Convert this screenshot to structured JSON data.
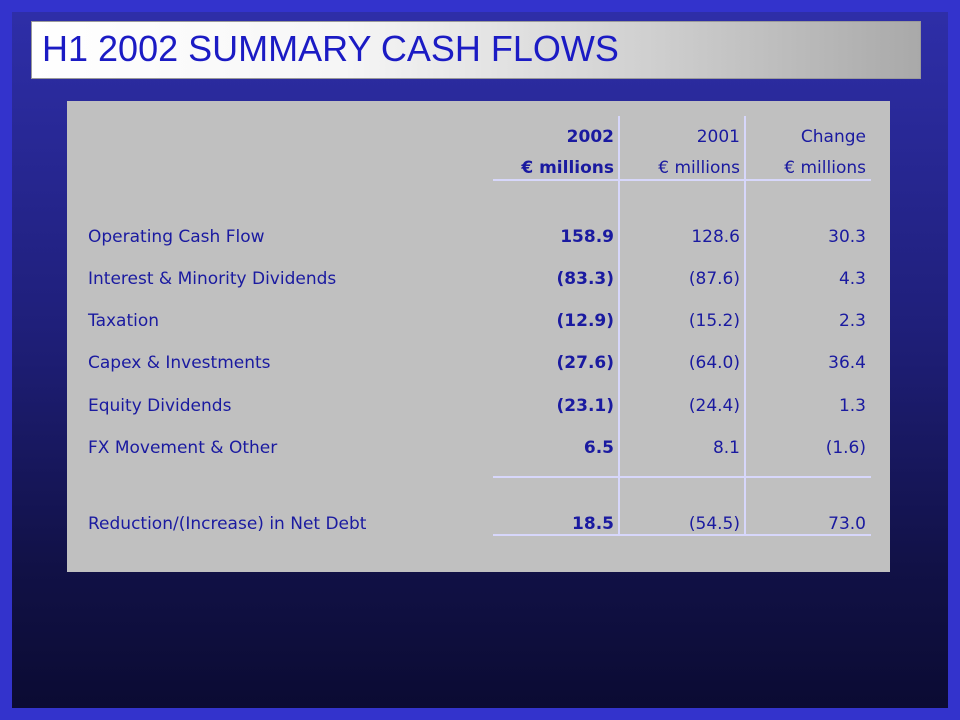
{
  "title": "H1 2002 SUMMARY CASH FLOWS",
  "columns": [
    {
      "year": "2002",
      "unit": "€ millions"
    },
    {
      "year": "2001",
      "unit": "€ millions"
    },
    {
      "year": "Change",
      "unit": "€ millions"
    }
  ],
  "rows": [
    {
      "label": "Operating Cash Flow",
      "v2002": "158.9",
      "v2001": "128.6",
      "change": "30.3"
    },
    {
      "label": "Interest & Minority Dividends",
      "v2002": "(83.3)",
      "v2001": "(87.6)",
      "change": "4.3"
    },
    {
      "label": "Taxation",
      "v2002": "(12.9)",
      "v2001": "(15.2)",
      "change": "2.3"
    },
    {
      "label": "Capex & Investments",
      "v2002": "(27.6)",
      "v2001": "(64.0)",
      "change": "36.4"
    },
    {
      "label": "Equity Dividends",
      "v2002": "(23.1)",
      "v2001": "(24.4)",
      "change": "1.3"
    },
    {
      "label": "FX Movement & Other",
      "v2002": "6.5",
      "v2001": "8.1",
      "change": "(1.6)"
    }
  ],
  "total": {
    "label": "Reduction/(Increase) in Net Debt",
    "v2002": "18.5",
    "v2001": "(54.5)",
    "change": "73.0"
  },
  "colors": {
    "title_text": "#1b1bc4",
    "table_text": "#1a1aa0",
    "panel": "#c0c0c0",
    "rules": "#d7d7fb"
  }
}
